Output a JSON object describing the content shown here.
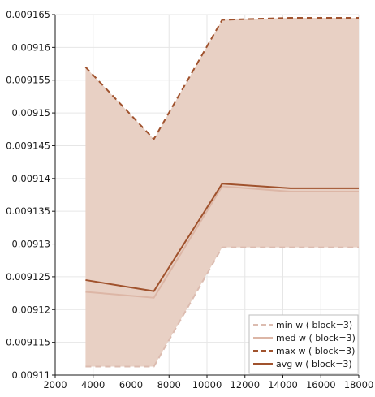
{
  "chart_data": {
    "type": "line",
    "title": "",
    "xlabel": "",
    "ylabel": "",
    "xlim": [
      2000,
      18000
    ],
    "ylim": [
      0.00911,
      0.009165
    ],
    "xticks": [
      2000,
      4000,
      6000,
      8000,
      10000,
      12000,
      14000,
      16000,
      18000
    ],
    "yticks": [
      0.00911,
      0.009115,
      0.00912,
      0.009125,
      0.00913,
      0.009135,
      0.00914,
      0.009145,
      0.00915,
      0.009155,
      0.00916,
      0.009165
    ],
    "ytick_labels": [
      "0.00911",
      "0.009115",
      "0.00912",
      "0.009125",
      "0.00913",
      "0.009135",
      "0.00914",
      "0.009145",
      "0.00915",
      "0.009155",
      "0.00916",
      "0.009165"
    ],
    "grid": true,
    "legend_position": "bottom-right",
    "x": [
      3600,
      7200,
      10800,
      14400,
      18000
    ],
    "band": {
      "lower": "min w ( block=3)",
      "upper": "max w ( block=3)",
      "color": "#e8d0c4"
    },
    "series": [
      {
        "name": "min w ( block=3)",
        "values": [
          0.0091113,
          0.0091113,
          0.0091295,
          0.0091295,
          0.0091295
        ],
        "color": "#dcbcb0",
        "dash": true,
        "width": 2
      },
      {
        "name": "med w ( block=3)",
        "values": [
          0.0091227,
          0.0091218,
          0.0091388,
          0.009138,
          0.009138
        ],
        "color": "#dcb6a6",
        "dash": false,
        "width": 2
      },
      {
        "name": "max w ( block=3)",
        "values": [
          0.009157,
          0.009146,
          0.0091642,
          0.0091645,
          0.0091645
        ],
        "color": "#a0522d",
        "dash": true,
        "width": 2
      },
      {
        "name": "avg w ( block=3)",
        "values": [
          0.0091245,
          0.0091228,
          0.0091392,
          0.0091385,
          0.0091385
        ],
        "color": "#a0522d",
        "dash": false,
        "width": 2
      }
    ]
  }
}
